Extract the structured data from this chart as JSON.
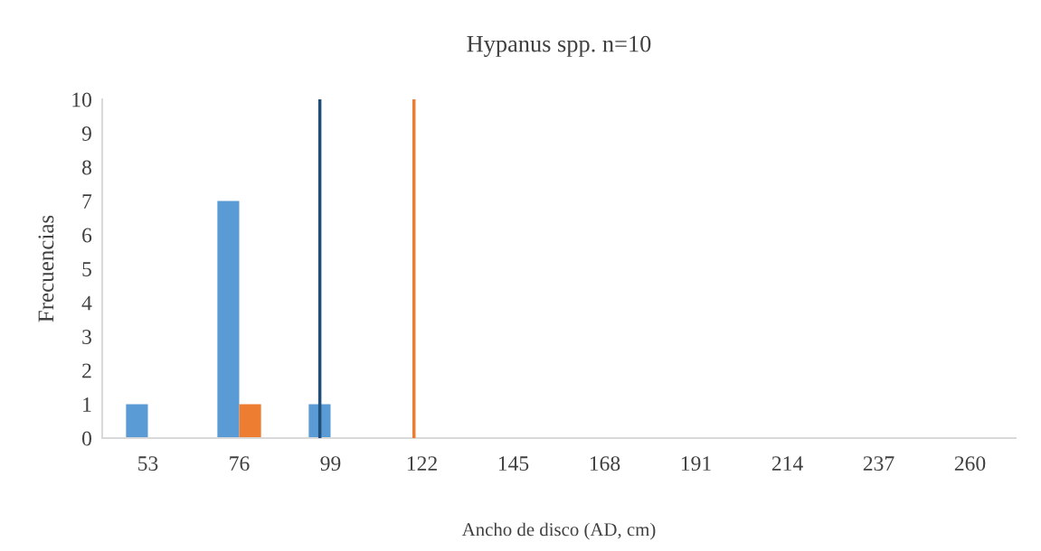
{
  "chart_data": {
    "type": "bar",
    "title": "Hypanus spp. n=10",
    "xlabel": "Ancho de disco (AD, cm)",
    "ylabel": "Frecuencias",
    "x": [
      53,
      76,
      99,
      122,
      145,
      168,
      191,
      214,
      237,
      260
    ],
    "series": [
      {
        "color": "#5b9bd5",
        "values": [
          1,
          7,
          1,
          0,
          0,
          0,
          0,
          0,
          0,
          0
        ]
      },
      {
        "color": "#ed7d31",
        "values": [
          0,
          1,
          0,
          0,
          0,
          0,
          0,
          0,
          0,
          0
        ]
      }
    ],
    "xlim": [
      41.5,
      271.5
    ],
    "xticks": [
      53,
      76,
      99,
      122,
      145,
      168,
      191,
      214,
      237,
      260
    ],
    "ylim": [
      0,
      10
    ],
    "yticks": [
      0,
      1,
      2,
      3,
      4,
      5,
      6,
      7,
      8,
      9,
      10
    ],
    "ref_lines": [
      {
        "axis": "x",
        "value": 96.3,
        "color": "#1f4e79"
      },
      {
        "axis": "x",
        "value": 120,
        "color": "#ed7d31"
      }
    ]
  }
}
